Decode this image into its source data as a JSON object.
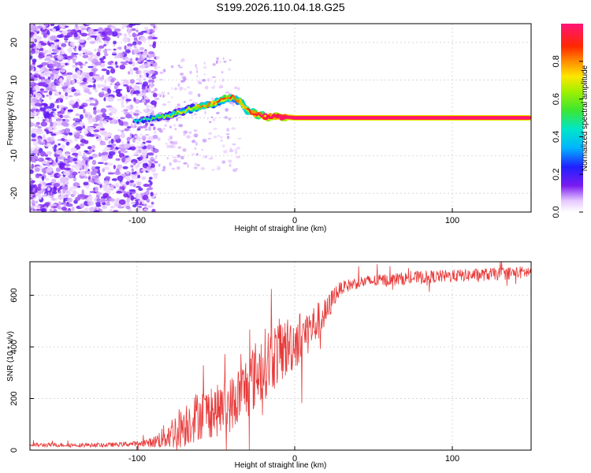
{
  "figure": {
    "title": "S199.2026.110.04.18.G25"
  },
  "chart_data": [
    {
      "type": "heatmap",
      "title": "S199.2026.110.04.18.G25",
      "xlabel": "Height of straight line (km)",
      "ylabel": "Frequency (Hz)",
      "xlim": [
        -168,
        150
      ],
      "ylim": [
        -25,
        25
      ],
      "x_ticks": [
        -100,
        0,
        100
      ],
      "x_tick_labels": [
        "-100",
        "0",
        "100"
      ],
      "y_ticks": [
        -20,
        -10,
        0,
        10,
        20
      ],
      "y_tick_labels": [
        "-20",
        "-10",
        "0",
        "10",
        "20"
      ],
      "grid": true,
      "colorbar": {
        "label": "Normalized spectral amplitude",
        "range": [
          0,
          1
        ],
        "ticks": [
          0.0,
          0.2,
          0.4,
          0.6,
          0.8
        ],
        "tick_labels": [
          "0.0",
          "0.2",
          "0.4",
          "0.6",
          "0.8"
        ]
      },
      "ridge": {
        "description_x": [
          -100,
          -90,
          -80,
          -70,
          -60,
          -50,
          -45,
          -40,
          -35,
          -30,
          -25,
          -20,
          -15,
          -10,
          -5,
          0,
          150
        ],
        "frequency_hz": [
          -1,
          0,
          0.5,
          2,
          3,
          4,
          5,
          5.5,
          4.5,
          2,
          1,
          0.5,
          0.2,
          0.3,
          0.2,
          0,
          0
        ],
        "amplitude": [
          0.15,
          0.25,
          0.35,
          0.4,
          0.5,
          0.55,
          0.6,
          0.6,
          0.55,
          0.6,
          0.7,
          0.8,
          0.85,
          0.9,
          0.9,
          0.95,
          0.95
        ]
      },
      "noise_region_x": [
        -168,
        -88
      ]
    },
    {
      "type": "line",
      "title": "",
      "xlabel": "Height of straight line (km)",
      "ylabel": "SNR (10 * v/v)",
      "xlim": [
        -168,
        150
      ],
      "ylim": [
        0,
        730
      ],
      "x_ticks": [
        -100,
        0,
        100
      ],
      "x_tick_labels": [
        "-100",
        "0",
        "100"
      ],
      "y_ticks": [
        0,
        200,
        400,
        600
      ],
      "y_tick_labels": [
        "0",
        "200",
        "400",
        "600"
      ],
      "grid": true,
      "series": [
        {
          "name": "SNR",
          "color": "#e83a3a",
          "envelope_x": [
            -168,
            -120,
            -100,
            -90,
            -80,
            -70,
            -60,
            -50,
            -40,
            -30,
            -20,
            -10,
            0,
            10,
            20,
            25,
            30,
            40,
            60,
            80,
            100,
            120,
            150
          ],
          "envelope_mean": [
            20,
            20,
            25,
            30,
            60,
            100,
            140,
            150,
            180,
            250,
            330,
            380,
            420,
            470,
            530,
            600,
            630,
            650,
            660,
            670,
            675,
            680,
            690
          ],
          "envelope_spread": [
            8,
            8,
            10,
            20,
            60,
            90,
            100,
            100,
            110,
            130,
            140,
            130,
            110,
            90,
            60,
            40,
            25,
            25,
            25,
            25,
            25,
            25,
            25
          ]
        }
      ]
    }
  ],
  "colors": {
    "line": "#e83a3a",
    "grid": "#c8c8c8",
    "noise": "#7a28e8"
  }
}
